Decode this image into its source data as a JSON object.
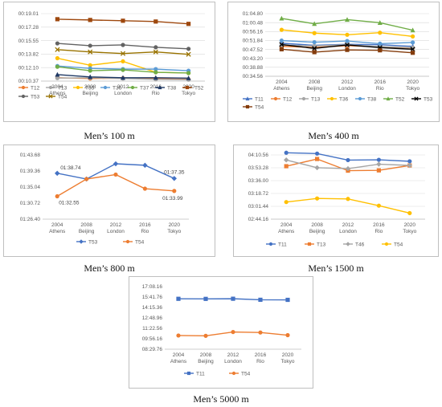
{
  "chart_data": [
    {
      "type": "line",
      "title": "Men’s 100 m",
      "categories": [
        "2004 Athens",
        "2008 Beijing",
        "2012 London",
        "2016 Rio",
        "2020 Tokyo"
      ],
      "y_ticks": [
        "00:10.37",
        "00:12.10",
        "00:13.82",
        "00:15.55",
        "00:17.28",
        "00:19.01"
      ],
      "ylim": [
        10.37,
        19.01
      ],
      "grid": true,
      "legend": "bottom",
      "series": [
        {
          "name": "T12",
          "color": "#ed7d31",
          "marker": "circle",
          "values": [
            10.8,
            10.7,
            10.75,
            10.7,
            10.6
          ]
        },
        {
          "name": "T13",
          "color": "#a5a5a5",
          "marker": "circle",
          "values": [
            10.75,
            10.8,
            10.7,
            10.6,
            10.55
          ]
        },
        {
          "name": "T35",
          "color": "#ffc000",
          "marker": "circle",
          "values": [
            13.3,
            12.4,
            12.9,
            11.5,
            11.4
          ]
        },
        {
          "name": "T36",
          "color": "#5b9bd5",
          "marker": "circle",
          "values": [
            12.3,
            12.0,
            11.9,
            11.9,
            11.7
          ]
        },
        {
          "name": "T37",
          "color": "#70ad47",
          "marker": "circle",
          "values": [
            12.2,
            11.7,
            11.8,
            11.5,
            11.4
          ]
        },
        {
          "name": "T38",
          "color": "#1f3864",
          "marker": "triangle",
          "values": [
            11.2,
            10.9,
            10.8,
            10.8,
            10.75
          ]
        },
        {
          "name": "T52",
          "color": "#9e480e",
          "marker": "square",
          "values": [
            18.3,
            18.2,
            18.1,
            18.0,
            17.7
          ]
        },
        {
          "name": "T53",
          "color": "#636363",
          "marker": "circle",
          "values": [
            15.2,
            14.9,
            15.0,
            14.7,
            14.5
          ]
        },
        {
          "name": "T54",
          "color": "#997300",
          "marker": "cross",
          "values": [
            14.4,
            14.1,
            13.9,
            14.1,
            13.8
          ]
        }
      ]
    },
    {
      "type": "line",
      "title": "Men’s 400 m",
      "categories": [
        "2004 Athens",
        "2008 Beijing",
        "2012 London",
        "2016 Rio",
        "2020 Tokyo"
      ],
      "y_ticks": [
        "00:34.56",
        "00:38.88",
        "00:43.20",
        "00:47.52",
        "00:51.84",
        "00:56.16",
        "01:00.48",
        "01:04.80"
      ],
      "ylim": [
        34.56,
        64.8
      ],
      "grid": true,
      "legend": "bottom",
      "series": [
        {
          "name": "T11",
          "color": "#4472c4",
          "marker": "triangle",
          "values": [
            50.5,
            49.5,
            50.0,
            49.8,
            49.0
          ]
        },
        {
          "name": "T12",
          "color": "#ed7d31",
          "marker": "circle",
          "values": [
            49.0,
            48.5,
            49.3,
            48.8,
            48.2
          ]
        },
        {
          "name": "T13",
          "color": "#a5a5a5",
          "marker": "circle",
          "values": [
            49.6,
            49.2,
            49.8,
            48.9,
            48.4
          ]
        },
        {
          "name": "T36",
          "color": "#ffc000",
          "marker": "circle",
          "values": [
            57.0,
            55.4,
            54.6,
            55.6,
            53.8
          ]
        },
        {
          "name": "T38",
          "color": "#5b9bd5",
          "marker": "circle",
          "values": [
            51.8,
            51.0,
            51.6,
            50.3,
            50.9
          ]
        },
        {
          "name": "T52",
          "color": "#70ad47",
          "marker": "triangle",
          "values": [
            62.5,
            59.9,
            61.9,
            60.4,
            56.8
          ]
        },
        {
          "name": "T53",
          "color": "#000000",
          "marker": "cross",
          "values": [
            49.9,
            48.0,
            49.7,
            48.4,
            47.6
          ]
        },
        {
          "name": "T54",
          "color": "#843c0c",
          "marker": "square",
          "values": [
            47.6,
            46.2,
            47.3,
            47.1,
            45.9
          ]
        }
      ]
    },
    {
      "type": "line",
      "title": "Men’s 800 m",
      "categories": [
        "2004 Athens",
        "2008 Beijing",
        "2012 London",
        "2016 Rio",
        "2020 Tokyo"
      ],
      "y_ticks": [
        "01:26.40",
        "01:30.72",
        "01:35.04",
        "01:39.36",
        "01:43.68"
      ],
      "ylim": [
        86.4,
        103.68
      ],
      "grid": false,
      "legend": "bottom",
      "data_labels": [
        "01:38.74",
        "01:37.35",
        "01:32.55",
        "01:33.99"
      ],
      "series": [
        {
          "name": "T53",
          "color": "#4472c4",
          "marker": "diamond",
          "values": [
            98.74,
            97.2,
            101.3,
            100.9,
            97.35
          ]
        },
        {
          "name": "T54",
          "color": "#ed7d31",
          "marker": "circle",
          "values": [
            92.55,
            97.2,
            98.4,
            94.6,
            93.99
          ]
        }
      ]
    },
    {
      "type": "line",
      "title": "Men’s 1500 m",
      "categories": [
        "2004 Athens",
        "2008 Beijing",
        "2012 London",
        "2016 Rio",
        "2020 Tokyo"
      ],
      "y_ticks": [
        "02:44.16",
        "03:01.44",
        "03:18.72",
        "03:36.00",
        "03:53.28",
        "04:10.56"
      ],
      "ylim": [
        164.16,
        250.56
      ],
      "grid": true,
      "legend": "bottom",
      "series": [
        {
          "name": "T11",
          "color": "#4472c4",
          "marker": "circle",
          "values": [
            253.5,
            252.4,
            243.6,
            244.0,
            242.0
          ]
        },
        {
          "name": "T13",
          "color": "#ed7d31",
          "marker": "square",
          "values": [
            235.4,
            245.1,
            229.4,
            229.8,
            236.4
          ]
        },
        {
          "name": "T46",
          "color": "#a5a5a5",
          "marker": "diamond",
          "values": [
            243.8,
            233.4,
            232.1,
            238.1,
            236.5
          ]
        },
        {
          "name": "T54",
          "color": "#ffc000",
          "marker": "circle",
          "values": [
            187.2,
            192.0,
            191.4,
            182.3,
            172.3
          ]
        }
      ]
    },
    {
      "type": "line",
      "title": "Men’s 5000 m",
      "categories": [
        "2004 Athens",
        "2008 Beijing",
        "2012 London",
        "2016 Rio",
        "2020 Tokyo"
      ],
      "y_ticks": [
        "08:29.76",
        "09:56.16",
        "11:22.56",
        "12:48.96",
        "14:15.36",
        "15:41.76",
        "17:08.16"
      ],
      "ylim": [
        509.76,
        1028.16
      ],
      "grid": false,
      "legend": "bottom",
      "series": [
        {
          "name": "T11",
          "color": "#4472c4",
          "marker": "square",
          "values": [
            927.0,
            926.4,
            927.6,
            919.0,
            918.4
          ]
        },
        {
          "name": "T54",
          "color": "#ed7d31",
          "marker": "circle",
          "values": [
            623.0,
            620.5,
            652.0,
            648.0,
            626.0
          ]
        }
      ]
    }
  ]
}
